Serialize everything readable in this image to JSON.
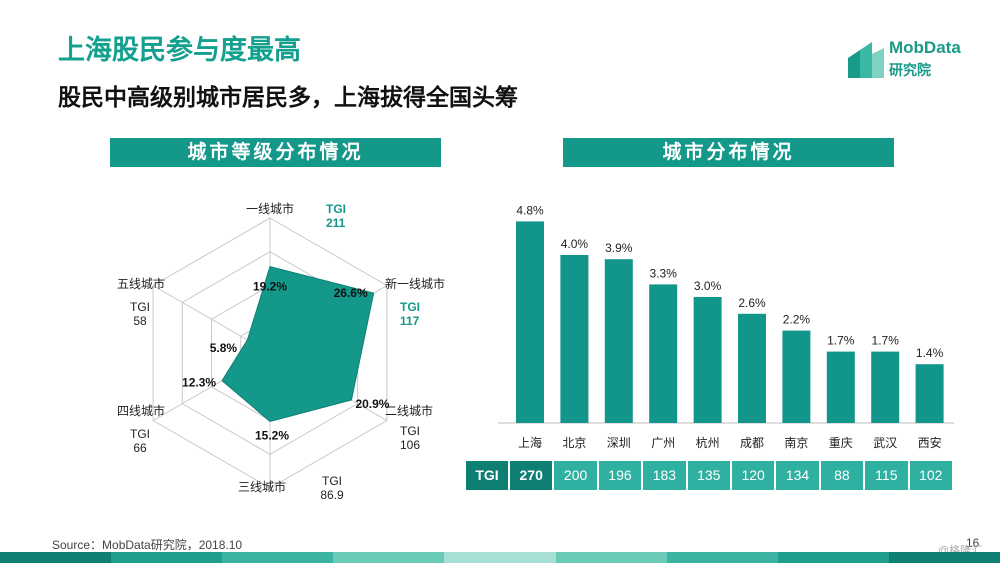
{
  "header": {
    "title": "上海股民参与度最高",
    "subtitle": "股民中高级别城市居民多，上海拔得全国头筹"
  },
  "logo": {
    "name": "MobData",
    "sub": "研究院"
  },
  "left_section_title": "城市等级分布情况",
  "right_section_title": "城市分布情况",
  "tgi_label": "TGI",
  "source": "Source：MobData研究院，2018.10",
  "page_number": "16",
  "watermark": "@格隆汇",
  "colors": {
    "accent": "#13988a",
    "bar": "#12958a",
    "title": "#13a08e"
  },
  "chart_data": [
    {
      "type": "radar",
      "title": "城市等级分布情况",
      "categories": [
        "一线城市",
        "新一线城市",
        "二线城市",
        "三线城市",
        "四线城市",
        "五线城市"
      ],
      "values": [
        19.2,
        26.6,
        20.9,
        15.2,
        12.3,
        5.8
      ],
      "value_labels": [
        "19.2%",
        "26.6%",
        "20.9%",
        "15.2%",
        "12.3%",
        "5.8%"
      ],
      "tgi": [
        "211",
        "117",
        "106",
        "86.9",
        "66",
        "58"
      ],
      "rmax": 30,
      "rings": 4
    },
    {
      "type": "bar",
      "title": "城市分布情况",
      "categories": [
        "上海",
        "北京",
        "深圳",
        "广州",
        "杭州",
        "成都",
        "南京",
        "重庆",
        "武汉",
        "西安"
      ],
      "values": [
        4.8,
        4.0,
        3.9,
        3.3,
        3.0,
        2.6,
        2.2,
        1.7,
        1.7,
        1.4
      ],
      "value_labels": [
        "4.8%",
        "4.0%",
        "3.9%",
        "3.3%",
        "3.0%",
        "2.6%",
        "2.2%",
        "1.7%",
        "1.7%",
        "1.4%"
      ],
      "tgi": [
        "270",
        "200",
        "196",
        "183",
        "135",
        "120",
        "134",
        "88",
        "115",
        "102"
      ],
      "ylim": [
        0,
        5
      ]
    }
  ]
}
